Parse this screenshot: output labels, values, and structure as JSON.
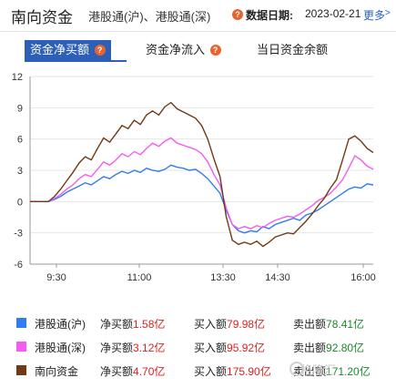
{
  "header": {
    "title": "南向资金",
    "subtitle": "港股通(沪)、港股通(深)",
    "date_label": "数据日期:",
    "date_value": "2023-02-21",
    "more_label": "更多",
    "help_glyph": "?"
  },
  "tabs": [
    {
      "label": "资金净买额",
      "active": true
    },
    {
      "label": "资金净流入",
      "active": false
    },
    {
      "label": "当日资金余额",
      "active": false
    }
  ],
  "chart_data": {
    "type": "line",
    "ylim": [
      -6,
      12
    ],
    "yticks": [
      "12",
      "9",
      "6",
      "3",
      "0",
      "-3",
      "-6"
    ],
    "xticks": [
      "9:30",
      "11:00",
      "13:30",
      "14:30",
      "16:00"
    ],
    "series": [
      {
        "name": "港股通(沪)",
        "color": "#2f7df0",
        "values": [
          0,
          0,
          0,
          0,
          0.2,
          0.5,
          0.9,
          1.2,
          1.5,
          1.8,
          1.6,
          2.0,
          2.4,
          2.2,
          2.6,
          2.9,
          2.7,
          3.0,
          2.8,
          3.2,
          3.0,
          2.9,
          3.1,
          3.5,
          3.3,
          3.2,
          3.0,
          3.1,
          2.7,
          2.2,
          1.5,
          0.8,
          -0.8,
          -2.2,
          -2.8,
          -3.0,
          -2.8,
          -2.9,
          -2.4,
          -2.6,
          -2.2,
          -2.0,
          -1.8,
          -1.6,
          -1.8,
          -1.3,
          -1.1,
          -0.8,
          -0.4,
          0.0,
          0.4,
          0.8,
          1.2,
          1.4,
          1.3,
          1.7,
          1.6
        ]
      },
      {
        "name": "港股通(深)",
        "color": "#f45cf0",
        "values": [
          0,
          0,
          0,
          0,
          0.3,
          0.7,
          1.2,
          1.6,
          2.2,
          2.6,
          2.4,
          3.1,
          3.8,
          3.5,
          4.0,
          4.6,
          4.3,
          4.8,
          4.5,
          5.1,
          5.6,
          5.3,
          5.8,
          6.1,
          5.6,
          5.4,
          5.2,
          5.0,
          4.6,
          3.8,
          2.6,
          1.6,
          -0.6,
          -2.2,
          -2.6,
          -2.4,
          -2.6,
          -2.3,
          -2.5,
          -2.1,
          -1.8,
          -1.6,
          -1.4,
          -1.5,
          -1.2,
          -0.8,
          -0.4,
          0.1,
          0.4,
          0.8,
          1.4,
          2.1,
          3.2,
          4.4,
          4.0,
          3.4,
          3.1
        ]
      },
      {
        "name": "南向资金",
        "color": "#6f3a15",
        "values": [
          0,
          0,
          0,
          0,
          0.5,
          1.2,
          2.0,
          2.8,
          3.7,
          4.3,
          4.0,
          5.1,
          6.1,
          5.7,
          6.5,
          7.3,
          7.0,
          7.8,
          7.4,
          8.3,
          8.7,
          8.3,
          9.1,
          9.5,
          8.9,
          8.6,
          8.3,
          8.0,
          7.3,
          6.0,
          4.1,
          2.4,
          -1.4,
          -3.7,
          -4.1,
          -3.9,
          -4.1,
          -3.8,
          -4.3,
          -3.9,
          -3.4,
          -3.2,
          -3.0,
          -3.1,
          -2.5,
          -1.9,
          -1.2,
          -0.4,
          0.3,
          1.3,
          2.1,
          4.0,
          6.0,
          6.3,
          5.8,
          5.1,
          4.7
        ]
      }
    ]
  },
  "legend": [
    {
      "name": "港股通(沪)",
      "color": "#2f7df0",
      "net_label": "净买额",
      "net_value": "1.58亿",
      "buy_label": "买入额",
      "buy_value": "79.98亿",
      "sell_label": "卖出额",
      "sell_value": "78.41亿"
    },
    {
      "name": "港股通(深)",
      "color": "#f45cf0",
      "net_label": "净买额",
      "net_value": "3.12亿",
      "buy_label": "买入额",
      "buy_value": "95.92亿",
      "sell_label": "卖出额",
      "sell_value": "92.80亿"
    },
    {
      "name": "南向资金",
      "color": "#6f3a15",
      "net_label": "净买额",
      "net_value": "4.70亿",
      "buy_label": "买入额",
      "buy_value": "175.90亿",
      "sell_label": "卖出额",
      "sell_value": "171.20亿"
    }
  ],
  "watermark": "格隆汇"
}
